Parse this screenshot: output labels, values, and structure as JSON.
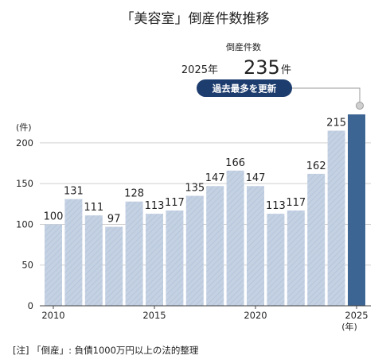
{
  "chart_data": {
    "type": "bar",
    "title": "「美容室」倒産件数推移",
    "ylabel": "(件)",
    "xlabel": "(年)",
    "categories": [
      2010,
      2011,
      2012,
      2013,
      2014,
      2015,
      2016,
      2017,
      2018,
      2019,
      2020,
      2021,
      2022,
      2023,
      2024,
      2025
    ],
    "x_tick_labels": [
      "2010",
      "2015",
      "2020",
      "2025"
    ],
    "x_tick_values": [
      2010,
      2015,
      2020,
      2025
    ],
    "values": [
      100,
      131,
      111,
      97,
      128,
      113,
      117,
      135,
      147,
      166,
      147,
      113,
      117,
      162,
      215,
      235
    ],
    "value_labels_shown": [
      100,
      131,
      111,
      97,
      128,
      113,
      117,
      135,
      147,
      166,
      147,
      113,
      117,
      162,
      215
    ],
    "ylim": [
      0,
      235
    ],
    "yticks": [
      0,
      50,
      100,
      150,
      200
    ],
    "highlight": {
      "label": "倒産件数",
      "year_text": "2025年",
      "value": "235",
      "unit": "件",
      "badge": "過去最多を更新"
    },
    "colors": {
      "bar": "#c4d1e3",
      "bar_hatch": "#b2c2d9",
      "highlight_bar": "#3d6594",
      "badge": "#1d3d6e",
      "axis": "#444444",
      "grid": "#cfcfcf"
    }
  },
  "note": "[注] 「倒産」: 負債1000万円以上の法的整理"
}
